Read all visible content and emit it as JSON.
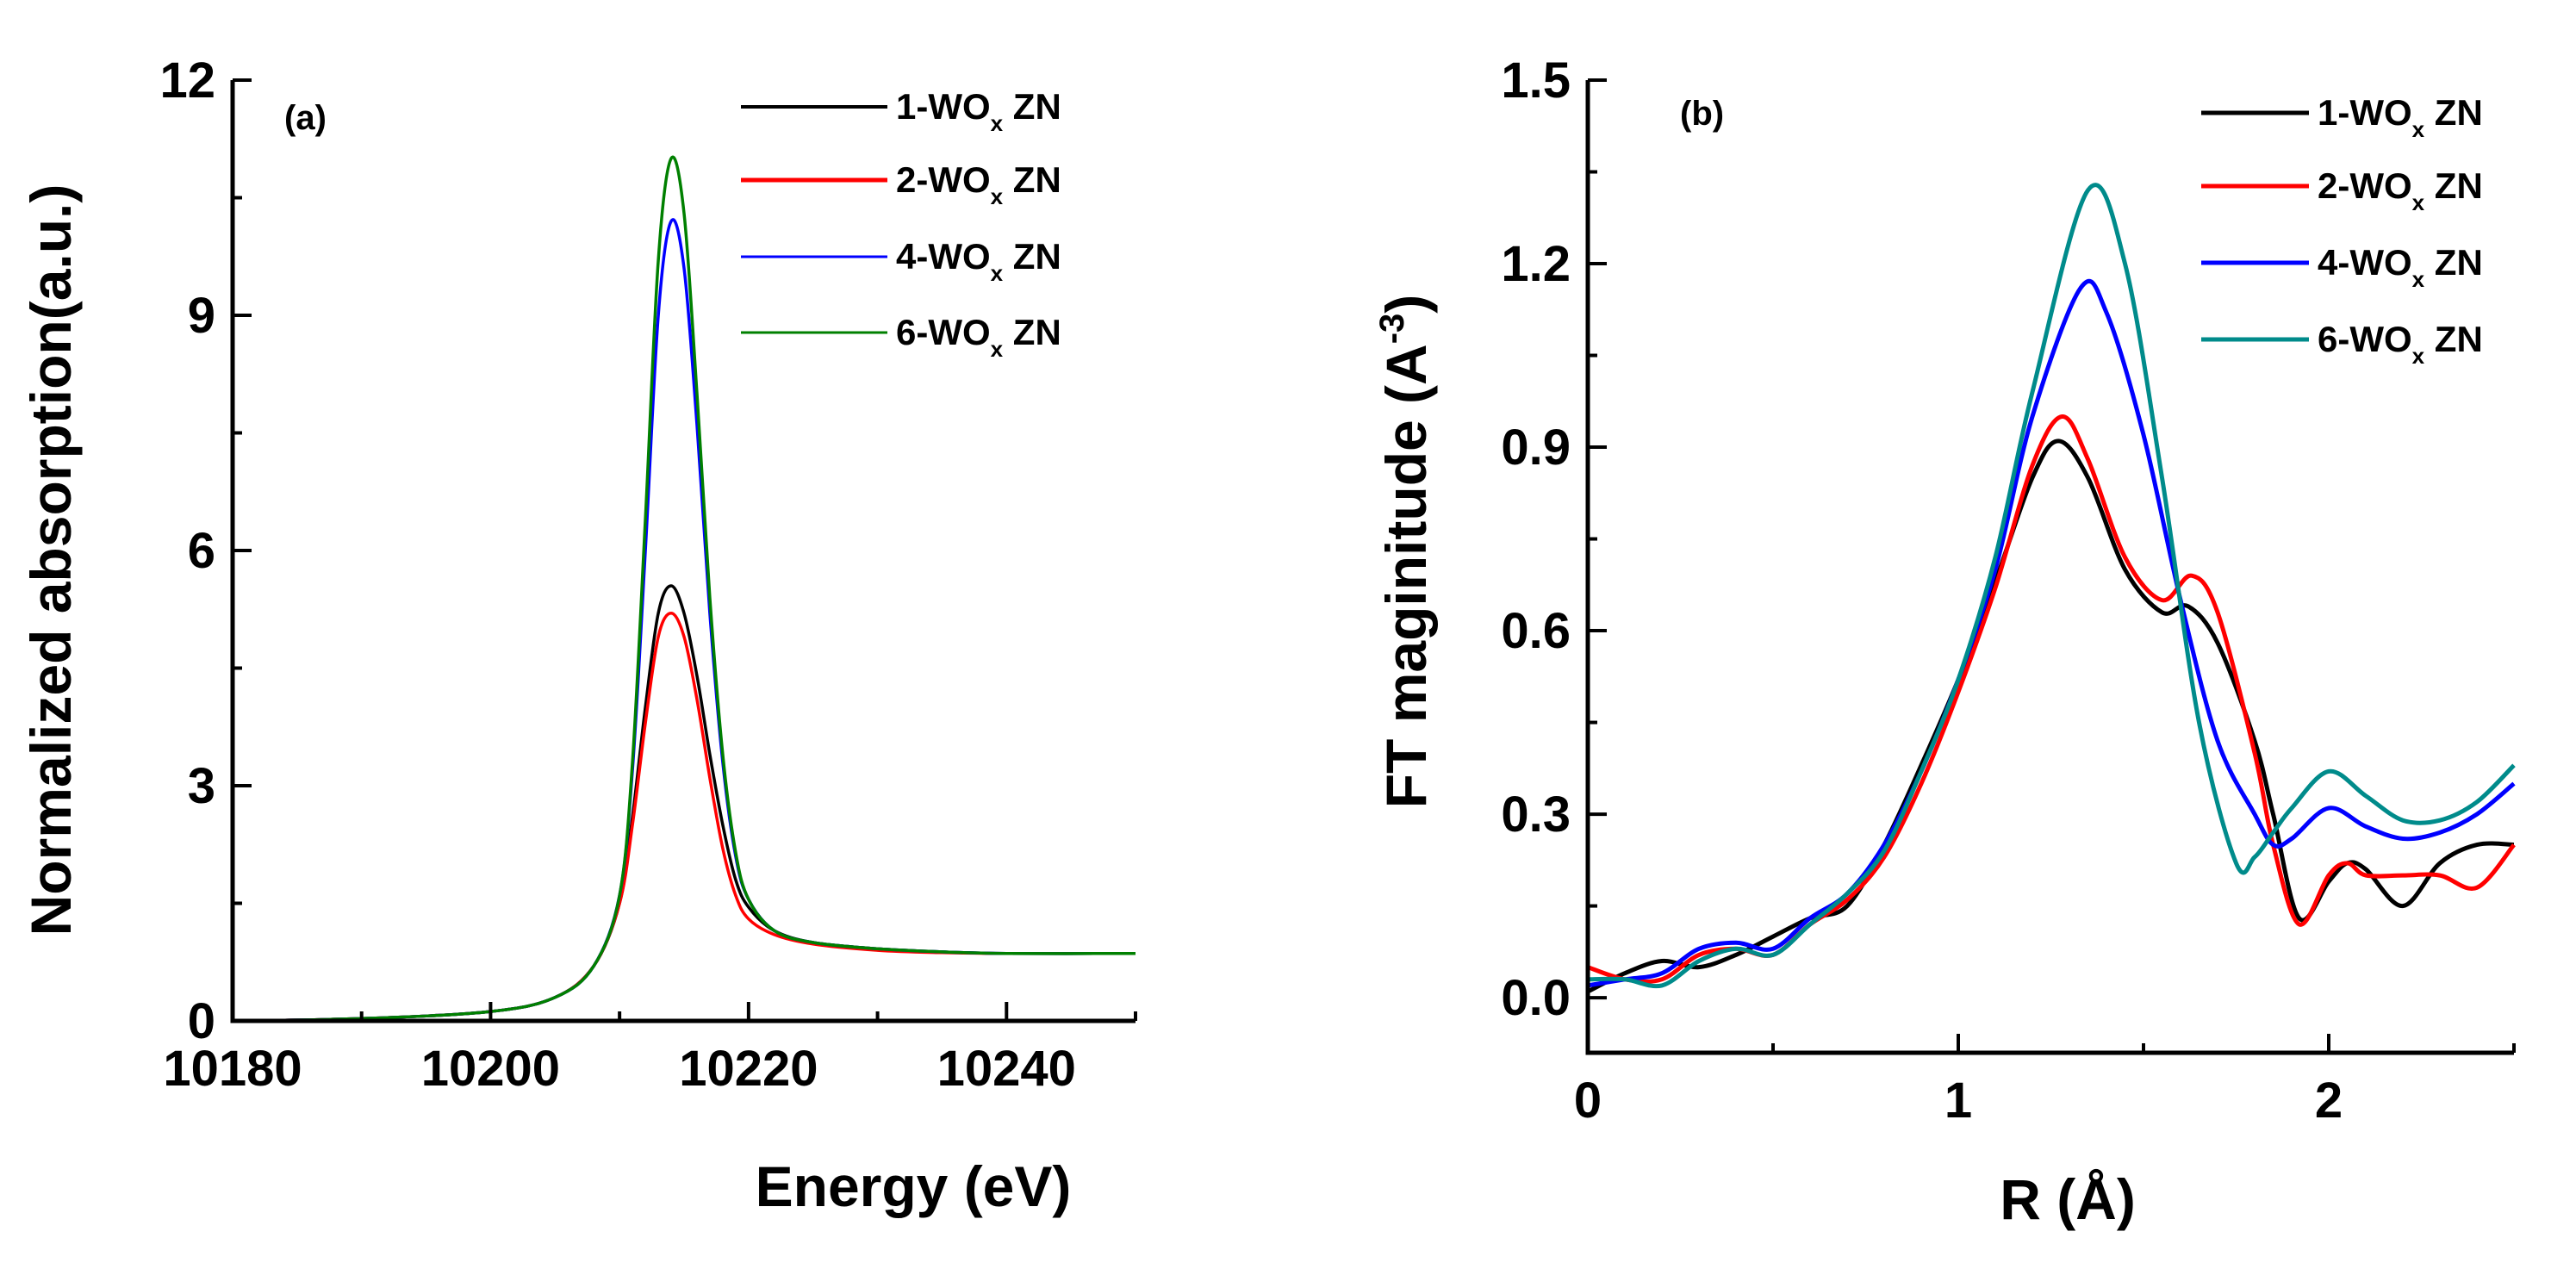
{
  "chart_data": [
    {
      "type": "line",
      "panel_label": "(a)",
      "xlabel": "Energy (eV)",
      "ylabel": "Normalized absorption(a.u.)",
      "xlim": [
        10180,
        10250
      ],
      "ylim": [
        0,
        12
      ],
      "xticks": [
        10180,
        10200,
        10220,
        10240
      ],
      "xtick_labels": [
        "10180",
        "10200",
        "10220",
        "10240"
      ],
      "yticks": [
        0,
        3,
        6,
        9,
        12
      ],
      "ytick_labels": [
        "0",
        "3",
        "6",
        "9",
        "12"
      ],
      "legend_position": "top-right",
      "series": [
        {
          "name": "1-WO",
          "sub": "x",
          "suffix": " ZN",
          "color": "#000000",
          "x": [
            10180,
            10190,
            10200,
            10205,
            10208,
            10210,
            10211,
            10212,
            10213,
            10214,
            10215,
            10216,
            10217,
            10218,
            10219,
            10220,
            10222,
            10225,
            10230,
            10235,
            10240,
            10250
          ],
          "y": [
            0,
            0.03,
            0.12,
            0.3,
            0.7,
            1.5,
            2.6,
            4.0,
            5.2,
            5.55,
            5.2,
            4.4,
            3.4,
            2.5,
            1.8,
            1.45,
            1.15,
            1.0,
            0.92,
            0.88,
            0.86,
            0.86
          ]
        },
        {
          "name": "2-WO",
          "sub": "x",
          "suffix": " ZN",
          "color": "#ff0000",
          "x": [
            10180,
            10190,
            10200,
            10205,
            10208,
            10210,
            10211,
            10212,
            10213,
            10214,
            10215,
            10216,
            10217,
            10218,
            10219,
            10220,
            10222,
            10225,
            10230,
            10235,
            10240,
            10250
          ],
          "y": [
            0,
            0.03,
            0.12,
            0.3,
            0.7,
            1.5,
            2.5,
            3.8,
            4.9,
            5.2,
            4.9,
            4.1,
            3.1,
            2.2,
            1.6,
            1.3,
            1.1,
            0.98,
            0.9,
            0.87,
            0.86,
            0.86
          ]
        },
        {
          "name": "4-WO",
          "sub": "x",
          "suffix": " ZN",
          "color": "#0000ff",
          "x": [
            10180,
            10190,
            10200,
            10205,
            10208,
            10210,
            10211,
            10212,
            10213,
            10214,
            10215,
            10216,
            10217,
            10218,
            10219,
            10220,
            10222,
            10225,
            10230,
            10235,
            10240,
            10250
          ],
          "y": [
            0,
            0.03,
            0.12,
            0.3,
            0.7,
            1.6,
            3.2,
            6.0,
            9.0,
            10.2,
            9.6,
            7.6,
            5.2,
            3.3,
            2.1,
            1.55,
            1.15,
            1.0,
            0.92,
            0.88,
            0.86,
            0.86
          ]
        },
        {
          "name": "6-WO",
          "sub": "x",
          "suffix": " ZN",
          "color": "#008000",
          "x": [
            10180,
            10190,
            10200,
            10205,
            10208,
            10210,
            10211,
            10212,
            10213,
            10214,
            10215,
            10216,
            10217,
            10218,
            10219,
            10220,
            10222,
            10225,
            10230,
            10235,
            10240,
            10250
          ],
          "y": [
            0,
            0.03,
            0.12,
            0.3,
            0.7,
            1.6,
            3.3,
            6.4,
            9.7,
            11.0,
            10.3,
            8.0,
            5.4,
            3.4,
            2.15,
            1.55,
            1.15,
            1.0,
            0.92,
            0.88,
            0.86,
            0.86
          ]
        }
      ]
    },
    {
      "type": "line",
      "panel_label": "(b)",
      "xlabel": "R (Å)",
      "ylabel": "FT maginitude (A",
      "ylabel_sup": "-3",
      "ylabel_suffix": ")",
      "xlim": [
        0,
        2.5
      ],
      "ylim": [
        -0.09,
        1.5
      ],
      "xticks": [
        0,
        1,
        2
      ],
      "xtick_labels": [
        "0",
        "1",
        "2"
      ],
      "yticks": [
        0,
        0.3,
        0.6,
        0.9,
        1.2,
        1.5
      ],
      "ytick_labels": [
        "0.0",
        "0.3",
        "0.6",
        "0.9",
        "1.2",
        "1.5"
      ],
      "legend_position": "top-right",
      "series": [
        {
          "name": "1-WO",
          "sub": "x",
          "suffix": " ZN",
          "color": "#000000",
          "x": [
            0,
            0.1,
            0.2,
            0.3,
            0.4,
            0.5,
            0.6,
            0.7,
            0.8,
            0.9,
            1.0,
            1.1,
            1.2,
            1.27,
            1.35,
            1.45,
            1.55,
            1.62,
            1.7,
            1.8,
            1.85,
            1.92,
            2.0,
            2.05,
            2.1,
            2.2,
            2.3,
            2.4,
            2.5
          ],
          "y": [
            0.01,
            0.04,
            0.06,
            0.05,
            0.07,
            0.1,
            0.13,
            0.15,
            0.25,
            0.38,
            0.52,
            0.68,
            0.85,
            0.91,
            0.85,
            0.7,
            0.63,
            0.64,
            0.58,
            0.42,
            0.3,
            0.13,
            0.19,
            0.22,
            0.21,
            0.15,
            0.22,
            0.25,
            0.25
          ]
        },
        {
          "name": "2-WO",
          "sub": "x",
          "suffix": " ZN",
          "color": "#ff0000",
          "x": [
            0,
            0.1,
            0.2,
            0.3,
            0.4,
            0.5,
            0.6,
            0.7,
            0.8,
            0.9,
            1.0,
            1.1,
            1.2,
            1.28,
            1.35,
            1.45,
            1.55,
            1.63,
            1.7,
            1.8,
            1.85,
            1.92,
            2.0,
            2.05,
            2.1,
            2.2,
            2.3,
            2.4,
            2.5
          ],
          "y": [
            0.05,
            0.03,
            0.03,
            0.07,
            0.08,
            0.07,
            0.12,
            0.16,
            0.23,
            0.35,
            0.5,
            0.67,
            0.87,
            0.95,
            0.88,
            0.72,
            0.65,
            0.69,
            0.63,
            0.4,
            0.25,
            0.12,
            0.2,
            0.22,
            0.2,
            0.2,
            0.2,
            0.18,
            0.25
          ]
        },
        {
          "name": "4-WO",
          "sub": "x",
          "suffix": " ZN",
          "color": "#0000ff",
          "x": [
            0,
            0.1,
            0.2,
            0.3,
            0.4,
            0.5,
            0.6,
            0.7,
            0.8,
            0.9,
            1.0,
            1.1,
            1.2,
            1.33,
            1.4,
            1.5,
            1.6,
            1.7,
            1.8,
            1.85,
            1.9,
            2.0,
            2.1,
            2.2,
            2.3,
            2.4,
            2.5
          ],
          "y": [
            0.02,
            0.03,
            0.04,
            0.08,
            0.09,
            0.08,
            0.13,
            0.17,
            0.25,
            0.37,
            0.52,
            0.7,
            0.95,
            1.16,
            1.12,
            0.92,
            0.65,
            0.42,
            0.3,
            0.25,
            0.26,
            0.31,
            0.28,
            0.26,
            0.27,
            0.3,
            0.35
          ]
        },
        {
          "name": "6-WO",
          "sub": "x",
          "suffix": " ZN",
          "color": "#008b8b",
          "x": [
            0,
            0.1,
            0.2,
            0.3,
            0.4,
            0.5,
            0.6,
            0.7,
            0.8,
            0.9,
            1.0,
            1.1,
            1.2,
            1.35,
            1.45,
            1.55,
            1.65,
            1.75,
            1.8,
            1.85,
            1.9,
            2.0,
            2.1,
            2.2,
            2.3,
            2.4,
            2.5
          ],
          "y": [
            0.03,
            0.03,
            0.02,
            0.06,
            0.08,
            0.07,
            0.12,
            0.17,
            0.24,
            0.37,
            0.52,
            0.72,
            0.99,
            1.32,
            1.2,
            0.85,
            0.45,
            0.22,
            0.23,
            0.27,
            0.31,
            0.37,
            0.33,
            0.29,
            0.29,
            0.32,
            0.38
          ]
        }
      ]
    }
  ]
}
